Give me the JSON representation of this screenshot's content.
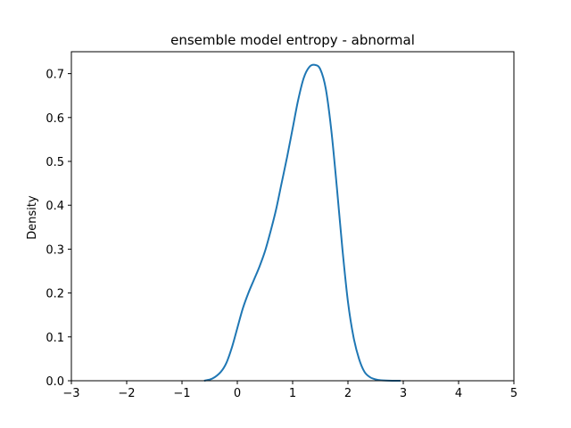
{
  "chart_data": {
    "type": "line",
    "title": "ensemble model entropy - abnormal",
    "xlabel": "",
    "ylabel": "Density",
    "xlim": [
      -3,
      5
    ],
    "ylim": [
      0,
      0.75
    ],
    "grid": false,
    "xticks": [
      -3,
      -2,
      -1,
      0,
      1,
      2,
      3,
      4,
      5
    ],
    "xtick_labels": [
      "−3",
      "−2",
      "−1",
      "0",
      "1",
      "2",
      "3",
      "4",
      "5"
    ],
    "yticks": [
      0.0,
      0.1,
      0.2,
      0.3,
      0.4,
      0.5,
      0.6,
      0.7
    ],
    "ytick_labels": [
      "0.0",
      "0.1",
      "0.2",
      "0.3",
      "0.4",
      "0.5",
      "0.6",
      "0.7"
    ],
    "series": [
      {
        "color": "#1f77b4",
        "x": [
          -0.6,
          -0.45,
          -0.3,
          -0.2,
          -0.1,
          0.0,
          0.1,
          0.2,
          0.3,
          0.4,
          0.5,
          0.6,
          0.7,
          0.8,
          0.9,
          1.0,
          1.1,
          1.2,
          1.3,
          1.4,
          1.5,
          1.6,
          1.7,
          1.8,
          1.9,
          2.0,
          2.1,
          2.2,
          2.3,
          2.4,
          2.5,
          2.6,
          2.8,
          2.95
        ],
        "y": [
          0.0,
          0.005,
          0.02,
          0.04,
          0.075,
          0.12,
          0.165,
          0.2,
          0.23,
          0.26,
          0.295,
          0.34,
          0.39,
          0.45,
          0.51,
          0.575,
          0.64,
          0.69,
          0.715,
          0.72,
          0.71,
          0.665,
          0.57,
          0.44,
          0.3,
          0.18,
          0.1,
          0.05,
          0.02,
          0.008,
          0.003,
          0.001,
          0.0,
          0.0
        ]
      }
    ]
  }
}
